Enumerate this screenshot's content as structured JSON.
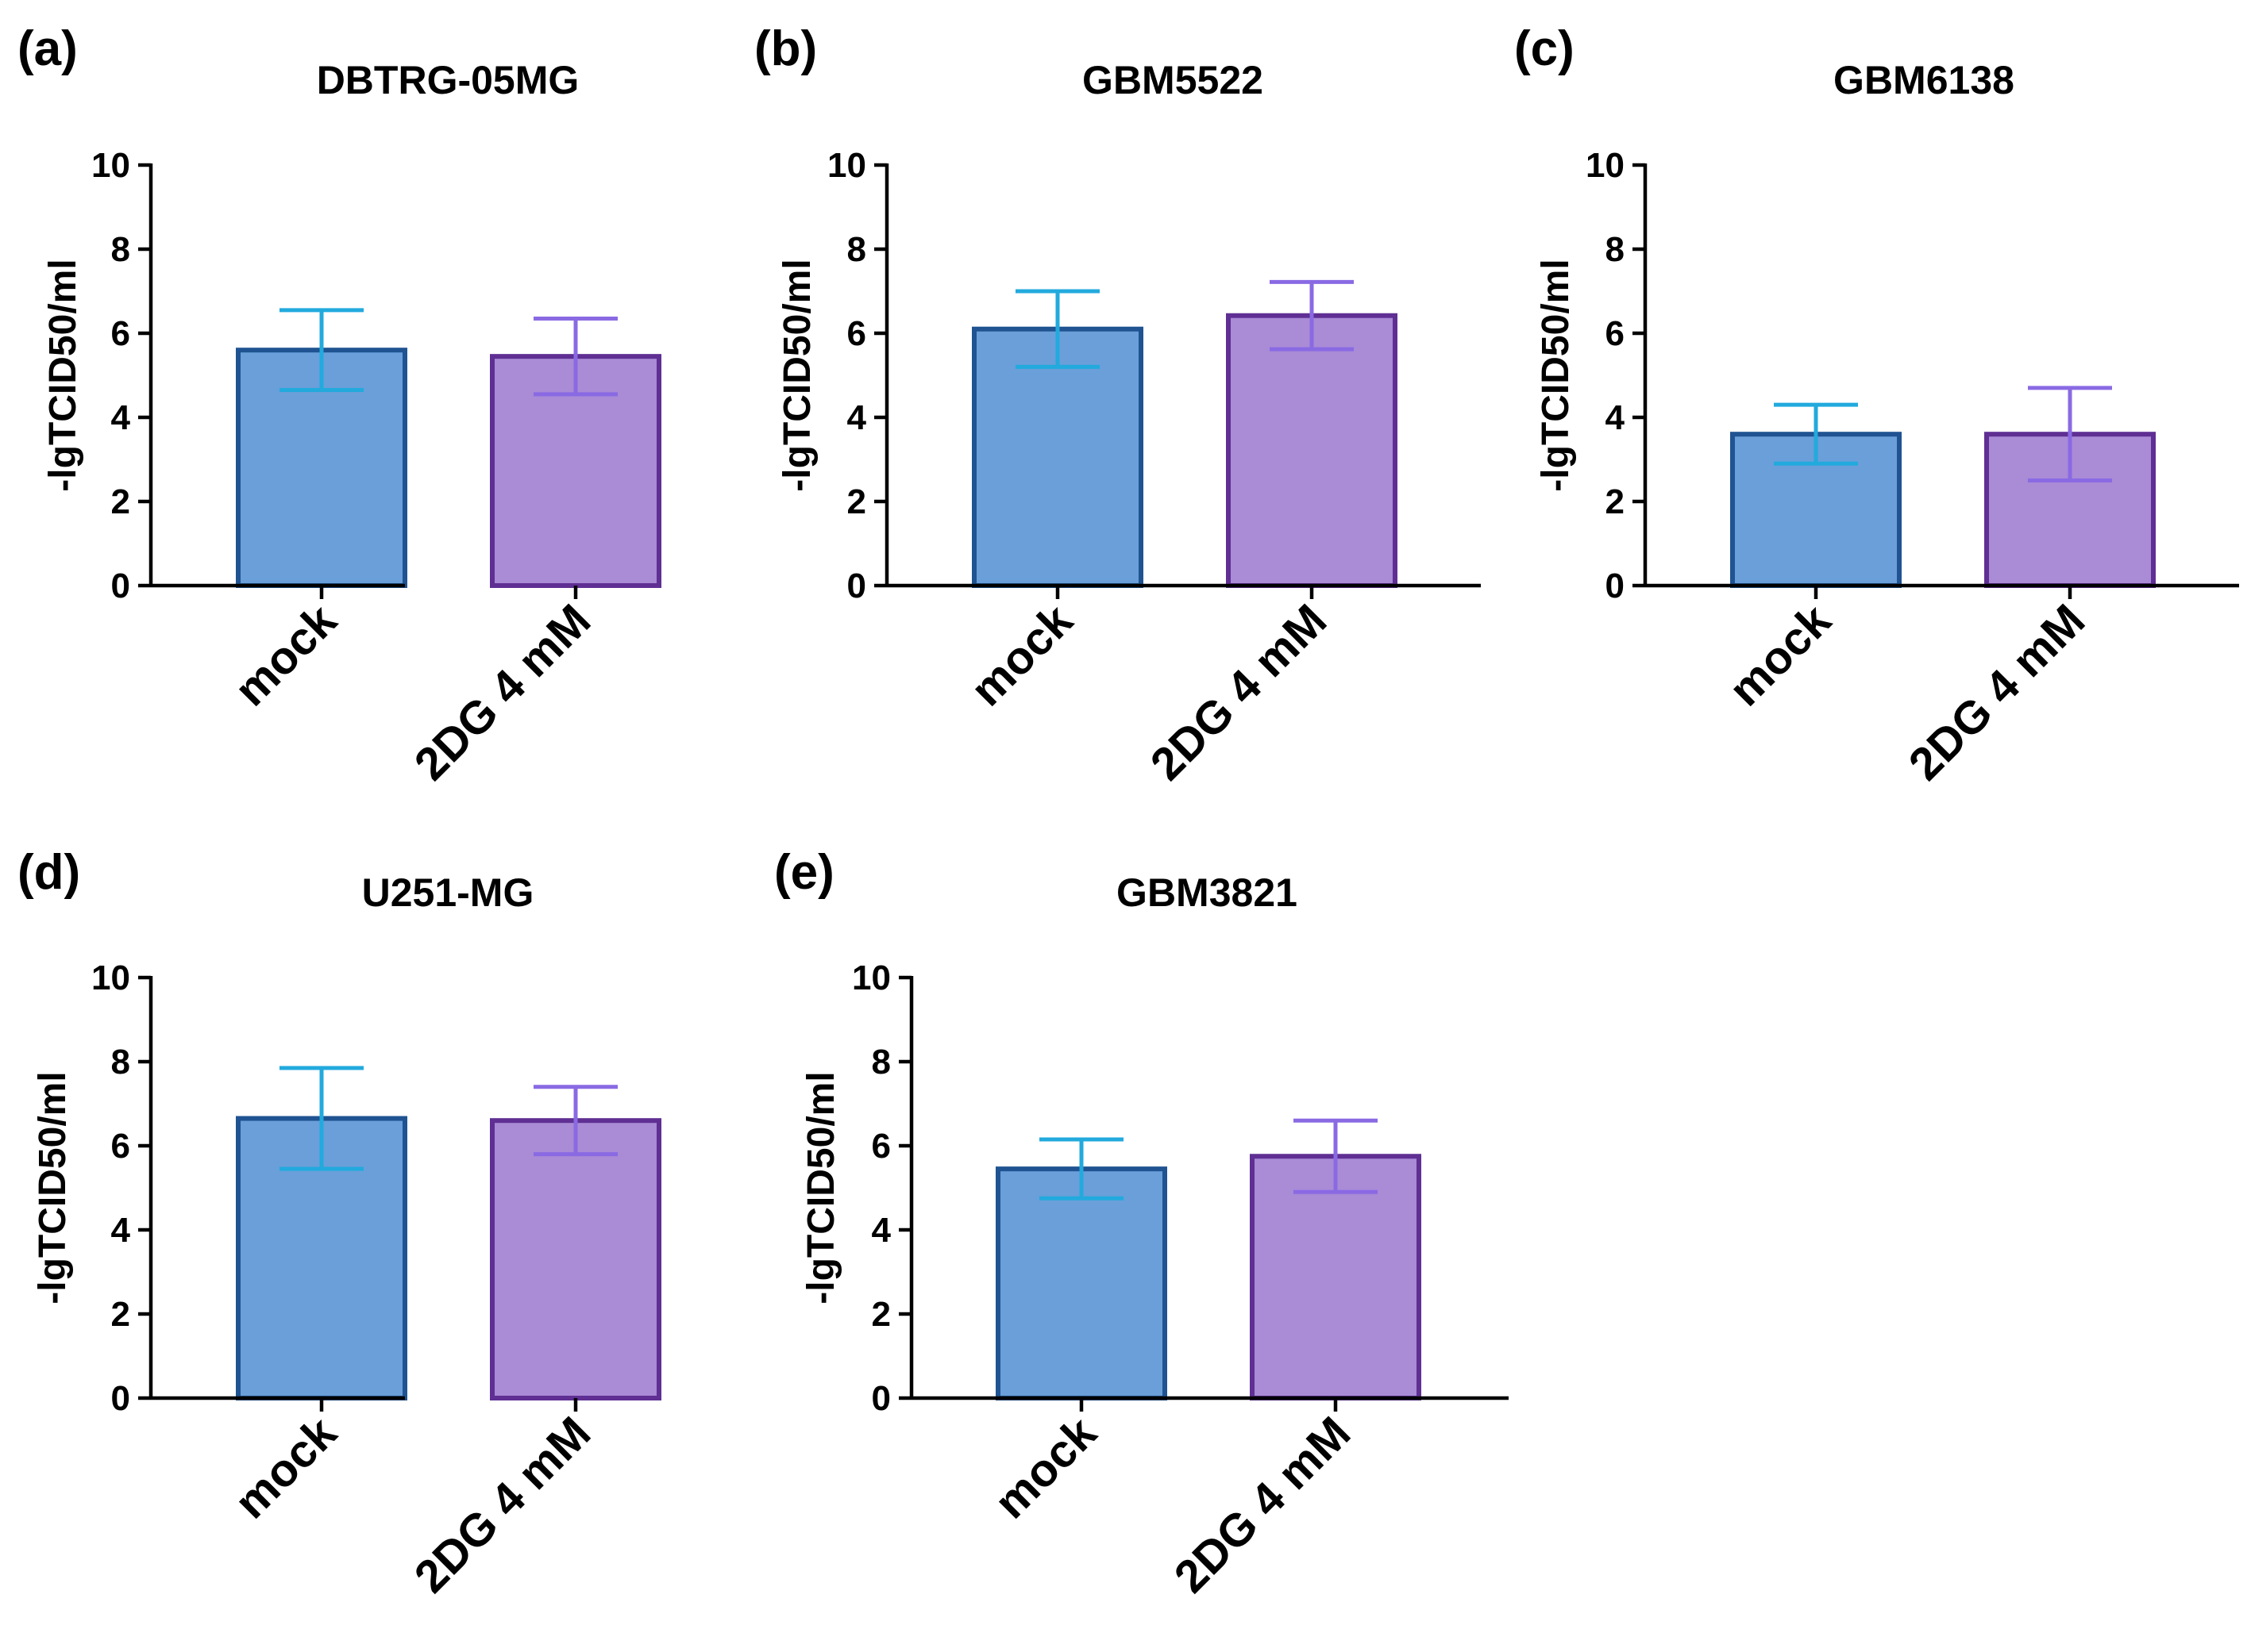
{
  "colors": {
    "mock_fill": "#6A9FD9",
    "mock_stroke": "#1F5391",
    "mock_error": "#22AADD",
    "dg_fill": "#A98BD6",
    "dg_stroke": "#5F2F93",
    "dg_error": "#8A6AE3"
  },
  "chart_data": [
    {
      "panel": "(a)",
      "type": "bar",
      "title": "DBTRG-05MG",
      "ylabel": "-lgTCID50/ml",
      "ylim": [
        0,
        10
      ],
      "yticks": [
        0,
        2,
        4,
        6,
        8,
        10
      ],
      "categories": [
        "mock",
        "2DG 4 mM"
      ],
      "values": [
        5.6,
        5.45
      ],
      "errors": [
        0.95,
        0.9
      ]
    },
    {
      "panel": "(b)",
      "type": "bar",
      "title": "GBM5522",
      "ylabel": "-lgTCID50/ml",
      "ylim": [
        0,
        10
      ],
      "yticks": [
        0,
        2,
        4,
        6,
        8,
        10
      ],
      "categories": [
        "mock",
        "2DG 4 mM"
      ],
      "values": [
        6.1,
        6.42
      ],
      "errors": [
        0.9,
        0.8
      ]
    },
    {
      "panel": "(c)",
      "type": "bar",
      "title": "GBM6138",
      "ylabel": "-lgTCID50/ml",
      "ylim": [
        0,
        10
      ],
      "yticks": [
        0,
        2,
        4,
        6,
        8,
        10
      ],
      "categories": [
        "mock",
        "2DG 4 mM"
      ],
      "values": [
        3.6,
        3.6
      ],
      "errors": [
        0.7,
        1.1
      ]
    },
    {
      "panel": "(d)",
      "type": "bar",
      "title": "U251-MG",
      "ylabel": "-lgTCID50/ml",
      "ylim": [
        0,
        10
      ],
      "yticks": [
        0,
        2,
        4,
        6,
        8,
        10
      ],
      "categories": [
        "mock",
        "2DG 4 mM"
      ],
      "values": [
        6.65,
        6.6
      ],
      "errors": [
        1.2,
        0.8
      ]
    },
    {
      "panel": "(e)",
      "type": "bar",
      "title": "GBM3821",
      "ylabel": "-lgTCID50/ml",
      "ylim": [
        0,
        10
      ],
      "yticks": [
        0,
        2,
        4,
        6,
        8,
        10
      ],
      "categories": [
        "mock",
        "2DG 4 mM"
      ],
      "values": [
        5.45,
        5.75
      ],
      "errors": [
        0.7,
        0.85
      ]
    }
  ]
}
